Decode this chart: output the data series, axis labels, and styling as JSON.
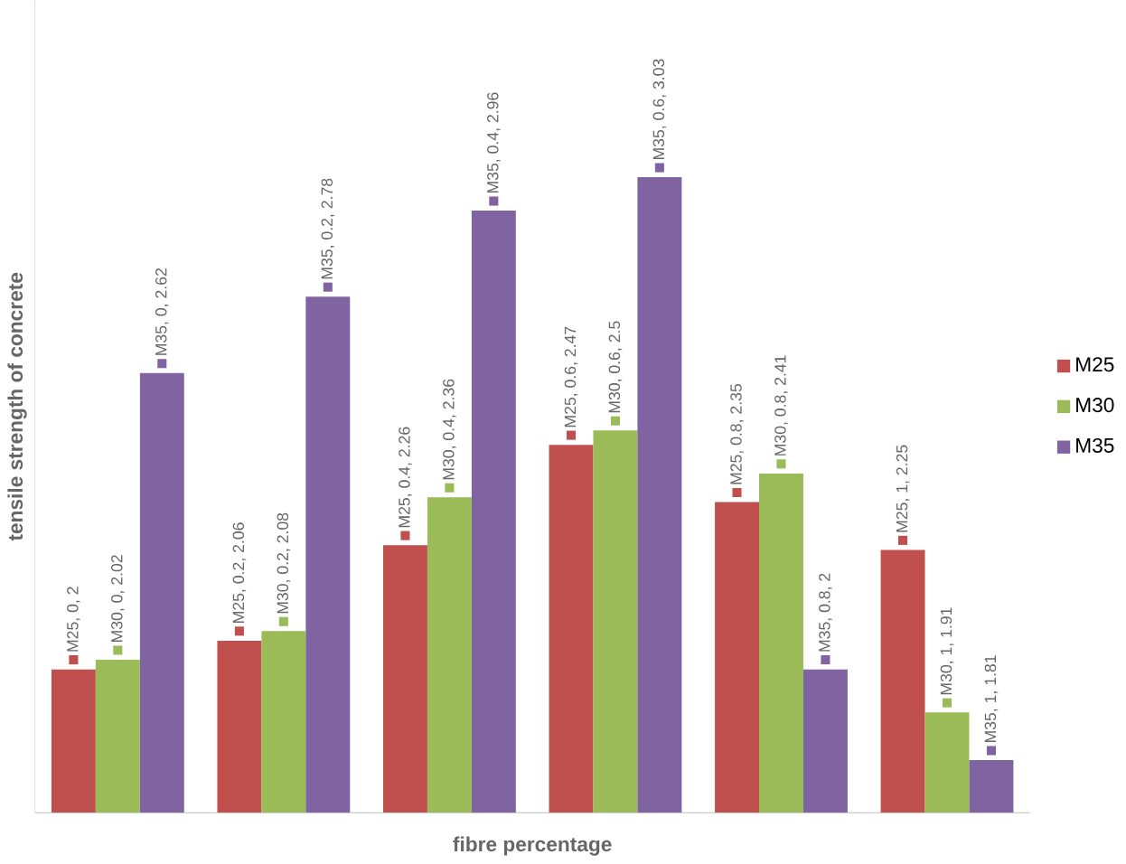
{
  "chart_data": {
    "type": "bar",
    "xlabel": "fibre percentage",
    "ylabel": "tensile strength of concrete",
    "categories": [
      null,
      null,
      null,
      null,
      null,
      null
    ],
    "series": [
      {
        "name": "M25",
        "color": "#c0504d",
        "values": [
          2,
          2.06,
          2.26,
          2.47,
          2.35,
          2.25
        ],
        "value_labels": [
          "M25, 0, 2",
          "M25, 0.2, 2.06",
          "M25, 0.4, 2.26",
          "M25, 0.6, 2.47",
          "M25, 0.8, 2.35",
          "M25, 1, 2.25"
        ]
      },
      {
        "name": "M30",
        "color": "#9bbb59",
        "values": [
          2.02,
          2.08,
          2.36,
          2.5,
          2.41,
          1.91
        ],
        "value_labels": [
          "M30, 0, 2.02",
          "M30, 0.2, 2.08",
          "M30, 0.4, 2.36",
          "M30, 0.6, 2.5",
          "M30, 0.8, 2.41",
          "M30, 1, 1.91"
        ]
      },
      {
        "name": "M35",
        "color": "#8064a2",
        "values": [
          2.62,
          2.78,
          2.96,
          3.03,
          2,
          1.81
        ],
        "value_labels": [
          "M35, 0, 2.62",
          "M35, 0.2, 2.78",
          "M35, 0.4, 2.96",
          "M35, 0.6, 3.03",
          "M35, 0.8, 2",
          "M35, 1, 1.81"
        ]
      }
    ],
    "ylim": [
      1.7,
      3.4
    ],
    "legend": "right",
    "tick_labels": false,
    "grid": false
  }
}
